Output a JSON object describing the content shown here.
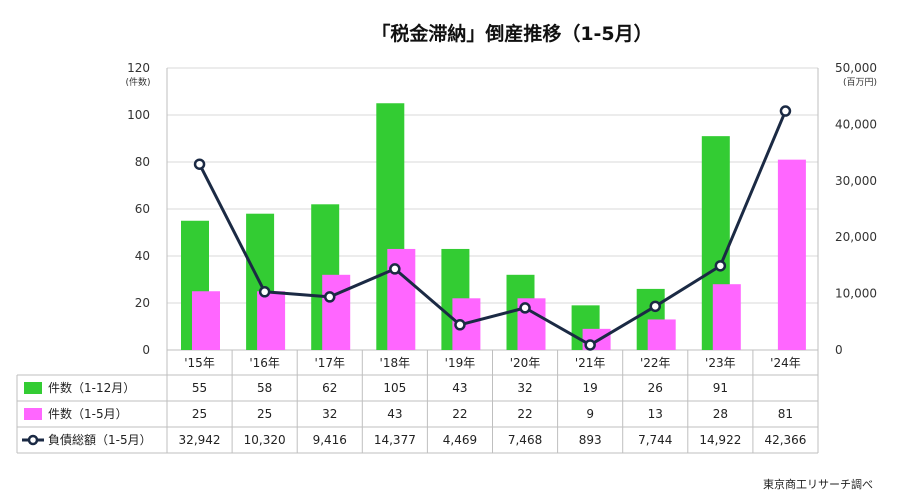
{
  "title": "「税金滞納」倒産推移（1-5月）",
  "source": "東京商工リサーチ調べ",
  "colors": {
    "bar_full_year": "#33cc33",
    "bar_jan_may": "#ff66ff",
    "line_debt": "#1b2a44",
    "grid": "#d9d9d9",
    "border": "#bfbfbf"
  },
  "chart_data": {
    "type": "bar",
    "title": "「税金滞納」倒産推移（1-5月）",
    "categories": [
      "'15年",
      "'16年",
      "'17年",
      "'18年",
      "'19年",
      "'20年",
      "'21年",
      "'22年",
      "'23年",
      "'24年"
    ],
    "series": [
      {
        "name": "件数（1-12月）",
        "type": "bar",
        "axis": "left",
        "values": [
          55,
          58,
          62,
          105,
          43,
          32,
          19,
          26,
          91,
          null
        ]
      },
      {
        "name": "件数（1-5月）",
        "type": "bar",
        "axis": "left",
        "values": [
          25,
          25,
          32,
          43,
          22,
          22,
          9,
          13,
          28,
          81
        ]
      },
      {
        "name": "負債総額（1-5月）",
        "type": "line",
        "axis": "right",
        "values": [
          32942,
          10320,
          9416,
          14377,
          4469,
          7468,
          893,
          7744,
          14922,
          42366
        ]
      }
    ],
    "y_left": {
      "label": "(件数)",
      "min": 0,
      "max": 120,
      "ticks": [
        0,
        20,
        40,
        60,
        80,
        100,
        120
      ]
    },
    "y_right": {
      "label": "(百万円)",
      "min": 0,
      "max": 50000,
      "ticks": [
        "0",
        "10,000",
        "20,000",
        "30,000",
        "40,000",
        "50,000"
      ]
    },
    "table": {
      "rows": [
        {
          "label": "件数（1-12月）",
          "cells": [
            "55",
            "58",
            "62",
            "105",
            "43",
            "32",
            "19",
            "26",
            "91",
            ""
          ]
        },
        {
          "label": "件数（1-5月）",
          "cells": [
            "25",
            "25",
            "32",
            "43",
            "22",
            "22",
            "9",
            "13",
            "28",
            "81"
          ]
        },
        {
          "label": "負債総額（1-5月）",
          "cells": [
            "32,942",
            "10,320",
            "9,416",
            "14,377",
            "4,469",
            "7,468",
            "893",
            "7,744",
            "14,922",
            "42,366"
          ]
        }
      ]
    }
  }
}
